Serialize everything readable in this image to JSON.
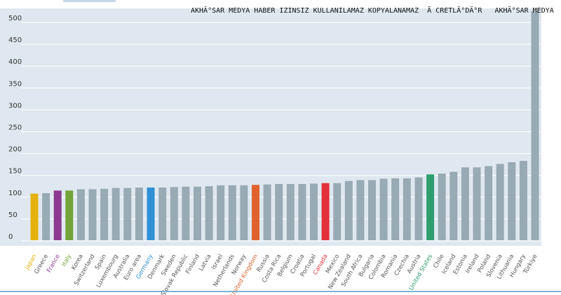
{
  "watermark": "AKHÄ°SAR MEDYA HABER IZINSIZ KULLANILAMAZ KOPYALANAMAZ  Ã CRETLÄ°DÄ°R   AKHÄ°SAR MEDYA",
  "colors": {
    "plot_bg": "#dfe8f0",
    "grid": "#ffffff",
    "bar_default": "#98aab4",
    "japan": "#e3b20c",
    "france": "#8b3a8f",
    "italy": "#72a43a",
    "germany": "#2f90d6",
    "united_kingdom": "#e0632f",
    "canada": "#e3303b",
    "united_states": "#2f9e6e",
    "tick_text": "#333333",
    "label_text": "#555555"
  },
  "chart_data": {
    "type": "bar",
    "title": "",
    "xlabel": "",
    "ylabel": "",
    "ylim": [
      0,
      520
    ],
    "yticks": [
      0,
      50,
      100,
      150,
      200,
      250,
      300,
      350,
      400,
      450,
      500
    ],
    "grid": true,
    "legend": "none",
    "categories": [
      "Japan",
      "Greece",
      "France",
      "Italy",
      "Korea",
      "Switzerland",
      "Spain",
      "Luxembourg",
      "Australia",
      "Euro area",
      "Germany",
      "Denmark",
      "Sweden",
      "Slovak Republic",
      "Finland",
      "Latvia",
      "Israel",
      "Netherlands",
      "Norway",
      "United Kingdom",
      "Russia",
      "Costa Rica",
      "Belgium",
      "Croatia",
      "Portugal",
      "Canada",
      "Mexico",
      "New Zealand",
      "South Africa",
      "Bulgaria",
      "Colombia",
      "Romania",
      "Czechia",
      "Austria",
      "United States",
      "Chile",
      "Iceland",
      "Estonia",
      "Ireland",
      "Poland",
      "Slovenia",
      "Lithuania",
      "Hungary",
      "Türkiye"
    ],
    "values": [
      97,
      98,
      104,
      104,
      107,
      107,
      108,
      110,
      110,
      111,
      111,
      111,
      112,
      113,
      113,
      114,
      116,
      116,
      116,
      117,
      118,
      119,
      119,
      119,
      120,
      121,
      121,
      126,
      128,
      128,
      131,
      132,
      132,
      134,
      141,
      143,
      147,
      157,
      157,
      160,
      165,
      169,
      172,
      515
    ],
    "highlight": {
      "Japan": "japan",
      "France": "france",
      "Italy": "italy",
      "Germany": "germany",
      "United Kingdom": "united_kingdom",
      "Canada": "canada",
      "United States": "united_states"
    }
  }
}
